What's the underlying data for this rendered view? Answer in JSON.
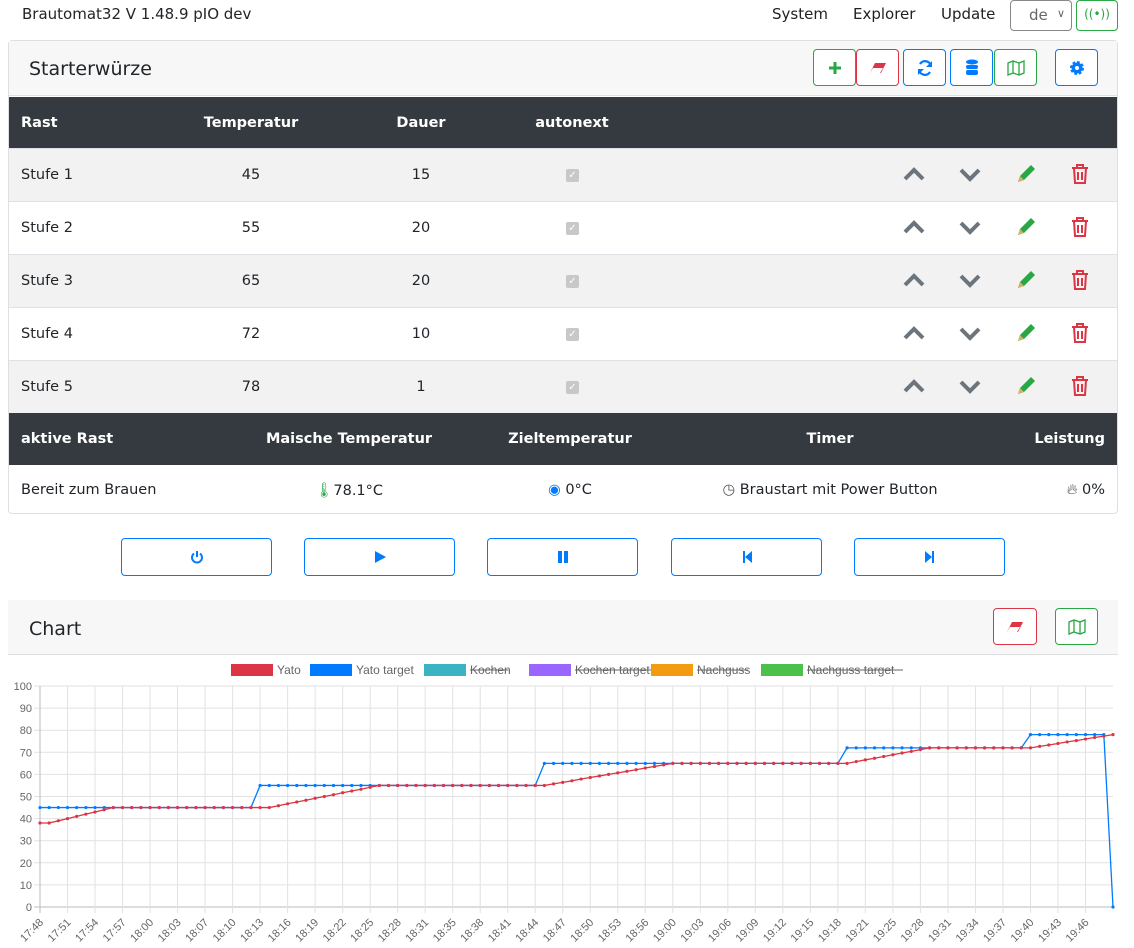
{
  "navbar": {
    "title": "Brautomat32 V 1.48.9 pIO dev",
    "links": [
      "System",
      "Explorer",
      "Update"
    ],
    "language": "de",
    "wifi_icon": "wifi-signal-icon"
  },
  "recipe": {
    "title": "Starterwürze",
    "toolbar": [
      "add-icon",
      "eraser-icon",
      "refresh-icon",
      "database-icon",
      "map-icon",
      "gear-icon"
    ],
    "columns": [
      "Rast",
      "Temperatur",
      "Dauer",
      "autonext"
    ],
    "rows": [
      {
        "name": "Stufe 1",
        "temp": "45",
        "duration": "15",
        "autonext": true
      },
      {
        "name": "Stufe 2",
        "temp": "55",
        "duration": "20",
        "autonext": true
      },
      {
        "name": "Stufe 3",
        "temp": "65",
        "duration": "20",
        "autonext": true
      },
      {
        "name": "Stufe 4",
        "temp": "72",
        "duration": "10",
        "autonext": true
      },
      {
        "name": "Stufe 5",
        "temp": "78",
        "duration": "1",
        "autonext": true
      }
    ]
  },
  "status": {
    "columns": [
      "aktive Rast",
      "Maische Temperatur",
      "Zieltemperatur",
      "Timer",
      "Leistung"
    ],
    "active": "Bereit zum Brauen",
    "mash_temp": "78.1°C",
    "target_temp": "0°C",
    "timer": "Braustart mit Power Button",
    "power": "0%"
  },
  "controls": [
    "power-icon",
    "play-icon",
    "pause-icon",
    "step-back-icon",
    "step-forward-icon"
  ],
  "chart_panel": {
    "title": "Chart"
  },
  "chart_data": {
    "type": "line",
    "ylim": [
      0,
      100
    ],
    "yticks": [
      0,
      10,
      20,
      30,
      40,
      50,
      60,
      70,
      80,
      90,
      100
    ],
    "grid": true,
    "legend": "top",
    "x_tick_labels": [
      "17:48",
      "17:51",
      "17:54",
      "17:57",
      "18:00",
      "18:03",
      "18:07",
      "18:10",
      "18:13",
      "18:16",
      "18:19",
      "18:22",
      "18:25",
      "18:28",
      "18:31",
      "18:35",
      "18:38",
      "18:41",
      "18:44",
      "18:47",
      "18:50",
      "18:53",
      "18:56",
      "19:00",
      "19:03",
      "19:06",
      "19:09",
      "19:12",
      "19:15",
      "19:18",
      "19:21",
      "19:25",
      "19:28",
      "19:31",
      "19:34",
      "19:37",
      "19:40",
      "19:43",
      "19:46"
    ],
    "series": [
      {
        "name": "Yato",
        "color": "#dc3545",
        "hidden": false,
        "values": [
          38,
          38,
          39,
          40,
          41,
          42,
          43,
          44,
          45,
          45,
          45,
          45,
          45,
          45,
          45,
          45,
          45,
          45,
          45,
          45,
          45,
          45,
          45,
          45,
          45,
          45,
          45.8,
          46.7,
          47.5,
          48.3,
          49.2,
          50,
          50.8,
          51.7,
          52.5,
          53.3,
          54.2,
          55,
          55,
          55,
          55,
          55,
          55,
          55,
          55,
          55,
          55,
          55,
          55,
          55,
          55,
          55,
          55,
          55,
          55,
          55,
          55.7,
          56.4,
          57.1,
          57.9,
          58.6,
          59.3,
          60,
          60.7,
          61.4,
          62.1,
          62.9,
          63.6,
          64.3,
          65,
          65,
          65,
          65,
          65,
          65,
          65,
          65,
          65,
          65,
          65,
          65,
          65,
          65,
          65,
          65,
          65,
          65,
          65,
          65,
          65.8,
          66.6,
          67.3,
          68.1,
          68.9,
          69.7,
          70.4,
          71.2,
          72,
          72,
          72,
          72,
          72,
          72,
          72,
          72,
          72,
          72,
          72,
          72,
          72.7,
          73.3,
          74,
          74.7,
          75.3,
          76,
          76.7,
          77.3,
          78
        ]
      },
      {
        "name": "Yato target",
        "color": "#007bff",
        "hidden": false,
        "values": [
          45,
          45,
          45,
          45,
          45,
          45,
          45,
          45,
          45,
          45,
          45,
          45,
          45,
          45,
          45,
          45,
          45,
          45,
          45,
          45,
          45,
          45,
          45,
          45,
          55,
          55,
          55,
          55,
          55,
          55,
          55,
          55,
          55,
          55,
          55,
          55,
          55,
          55,
          55,
          55,
          55,
          55,
          55,
          55,
          55,
          55,
          55,
          55,
          55,
          55,
          55,
          55,
          55,
          55,
          55,
          65,
          65,
          65,
          65,
          65,
          65,
          65,
          65,
          65,
          65,
          65,
          65,
          65,
          65,
          65,
          65,
          65,
          65,
          65,
          65,
          65,
          65,
          65,
          65,
          65,
          65,
          65,
          65,
          65,
          65,
          65,
          65,
          65,
          72,
          72,
          72,
          72,
          72,
          72,
          72,
          72,
          72,
          72,
          72,
          72,
          72,
          72,
          72,
          72,
          72,
          72,
          72,
          72,
          78,
          78,
          78,
          78,
          78,
          78,
          78,
          78,
          78,
          0
        ]
      },
      {
        "name": "Kochen",
        "color": "#3bb3c3",
        "hidden": true,
        "values": []
      },
      {
        "name": "Kochen target",
        "color": "#9966ff",
        "hidden": true,
        "values": []
      },
      {
        "name": "Nachguss",
        "color": "#f39c12",
        "hidden": true,
        "values": []
      },
      {
        "name": "Nachguss target",
        "color": "#4bc04b",
        "hidden": true,
        "values": []
      }
    ]
  }
}
